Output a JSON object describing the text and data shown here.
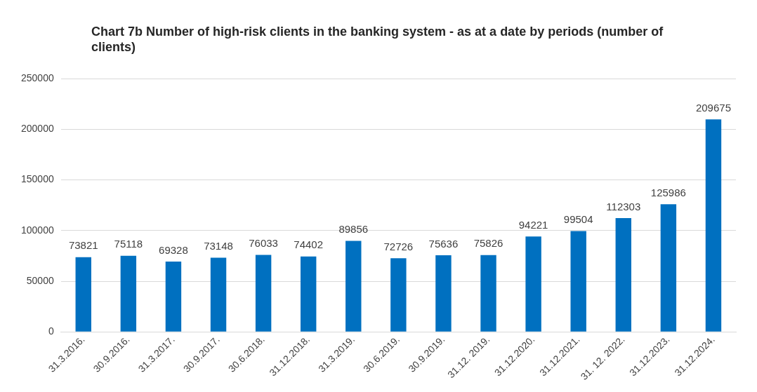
{
  "chart_data": {
    "type": "bar",
    "title": "Chart 7b Number of high-risk clients in the banking system - as at a date by periods (number of clients)",
    "categories": [
      "31.3.2016.",
      "30.9.2016.",
      "31.3.2017.",
      "30.9.2017.",
      "30.6.2018.",
      "31.12.2018.",
      "31.3.2019.",
      "30.6.2019.",
      "30.9.2019.",
      "31.12. 2019.",
      "31.12.2020.",
      "31.12.2021.",
      "31. 12. 2022.",
      "31.12.2023.",
      "31.12.2024."
    ],
    "values": [
      73821,
      75118,
      69328,
      73148,
      76033,
      74402,
      89856,
      72726,
      75636,
      75826,
      94221,
      99504,
      112303,
      125986,
      209675
    ],
    "color": "#0070c0",
    "ylim": [
      0,
      250000
    ],
    "yticks": [
      0,
      50000,
      100000,
      150000,
      200000,
      250000
    ],
    "grid": "y",
    "data_labels": true
  }
}
